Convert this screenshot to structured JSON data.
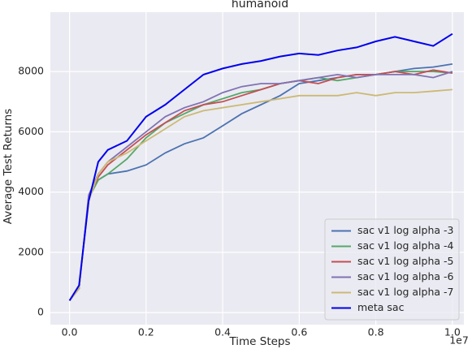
{
  "chart_data": {
    "type": "line",
    "title": "humanoid",
    "x_label": "Time Steps",
    "y_label": "Average Test Returns",
    "x_offset_label": "1e7",
    "x": [
      0,
      0.025,
      0.05,
      0.075,
      0.1,
      0.15,
      0.2,
      0.25,
      0.3,
      0.35,
      0.4,
      0.45,
      0.5,
      0.55,
      0.6,
      0.65,
      0.7,
      0.75,
      0.8,
      0.85,
      0.9,
      0.95,
      1.0
    ],
    "series": [
      {
        "name": "sac v1 log alpha -3",
        "color": "#4c72b0",
        "values": [
          400,
          800,
          3800,
          4400,
          4600,
          4700,
          4900,
          5300,
          5600,
          5800,
          6200,
          6600,
          6900,
          7200,
          7600,
          7700,
          7800,
          7900,
          7900,
          8000,
          8100,
          8150,
          8250
        ]
      },
      {
        "name": "sac v1 log alpha -4",
        "color": "#55a868",
        "values": [
          400,
          800,
          3800,
          4400,
          4600,
          5100,
          5800,
          6300,
          6600,
          6900,
          7100,
          7300,
          7400,
          7600,
          7700,
          7800,
          7700,
          7800,
          7900,
          8000,
          8000,
          8000,
          7950
        ]
      },
      {
        "name": "sac v1 log alpha -5",
        "color": "#c44e52",
        "values": [
          400,
          800,
          3800,
          4500,
          4900,
          5400,
          5900,
          6300,
          6700,
          6900,
          7000,
          7200,
          7400,
          7600,
          7700,
          7600,
          7800,
          7900,
          7900,
          8000,
          7900,
          8050,
          7950
        ]
      },
      {
        "name": "sac v1 log alpha -6",
        "color": "#8172b2",
        "values": [
          400,
          800,
          3900,
          4600,
          5000,
          5500,
          6000,
          6500,
          6800,
          7000,
          7300,
          7500,
          7600,
          7600,
          7700,
          7800,
          7900,
          7800,
          7900,
          7900,
          7900,
          7800,
          8000
        ]
      },
      {
        "name": "sac v1 log alpha -7",
        "color": "#ccb974",
        "values": [
          400,
          800,
          3700,
          4600,
          5000,
          5300,
          5700,
          6100,
          6500,
          6700,
          6800,
          6900,
          7000,
          7100,
          7200,
          7200,
          7200,
          7300,
          7200,
          7300,
          7300,
          7350,
          7400
        ]
      },
      {
        "name": "meta sac",
        "color": "#0000ee",
        "values": [
          400,
          900,
          3700,
          5000,
          5400,
          5700,
          6500,
          6900,
          7400,
          7900,
          8100,
          8250,
          8350,
          8500,
          8600,
          8550,
          8700,
          8800,
          9000,
          9150,
          9000,
          8850,
          9250
        ]
      }
    ],
    "xlim": [
      -0.05,
      1.03
    ],
    "ylim": [
      -400,
      9970
    ],
    "xticks": [
      {
        "value": 0,
        "label": "0.0"
      },
      0.2,
      0.4,
      0.6,
      0.8,
      {
        "value": 1,
        "label": "1.0"
      }
    ],
    "yticks": [
      0,
      2000,
      4000,
      6000,
      8000
    ],
    "grid": true,
    "legend": "lower right"
  }
}
